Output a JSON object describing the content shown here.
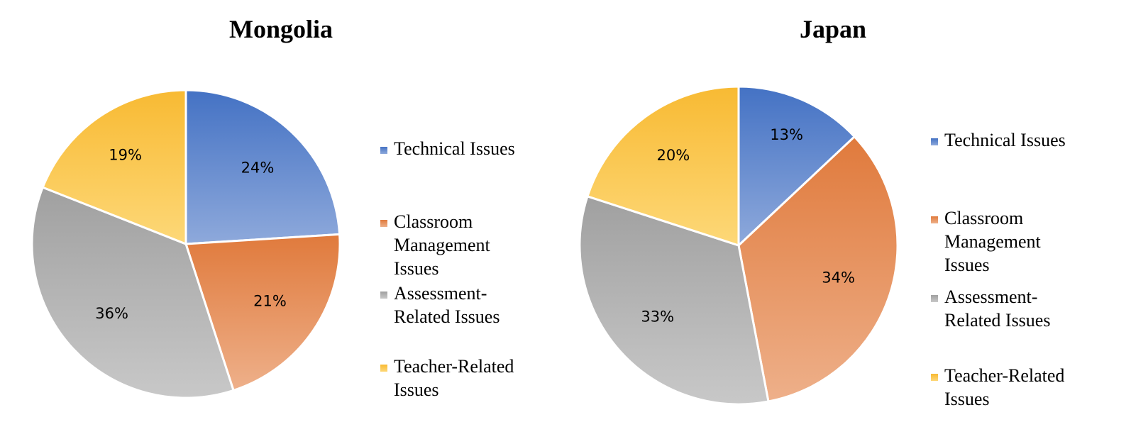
{
  "colors": {
    "technical": {
      "top": "#4472C4",
      "bottom": "#8EA9DB"
    },
    "classroom": {
      "top": "#E07A3C",
      "bottom": "#EEB08A"
    },
    "assessment": {
      "top": "#A0A0A0",
      "bottom": "#C8C8C8"
    },
    "teacher": {
      "top": "#F8BA33",
      "bottom": "#FDD878"
    }
  },
  "legend_labels": {
    "technical": "Technical Issues",
    "classroom": "Classroom\nManagement\nIssues",
    "assessment": "Assessment-\nRelated Issues",
    "teacher": "Teacher-Related\nIssues"
  },
  "charts": {
    "mongolia": {
      "title": "Mongolia"
    },
    "japan": {
      "title": "Japan"
    }
  },
  "chart_data": [
    {
      "type": "pie",
      "title": "Mongolia",
      "categories": [
        "Technical Issues",
        "Classroom Management Issues",
        "Assessment-Related Issues",
        "Teacher-Related Issues"
      ],
      "values": [
        24,
        21,
        36,
        19
      ],
      "labels": [
        "24%",
        "21%",
        "36%",
        "19%"
      ],
      "start_angle": "12 o'clock, clockwise",
      "legend_position": "right"
    },
    {
      "type": "pie",
      "title": "Japan",
      "categories": [
        "Technical Issues",
        "Classroom Management Issues",
        "Assessment-Related Issues",
        "Teacher-Related Issues"
      ],
      "values": [
        13,
        34,
        33,
        20
      ],
      "labels": [
        "13%",
        "34%",
        "33%",
        "20%"
      ],
      "start_angle": "12 o'clock, clockwise",
      "legend_position": "right"
    }
  ]
}
